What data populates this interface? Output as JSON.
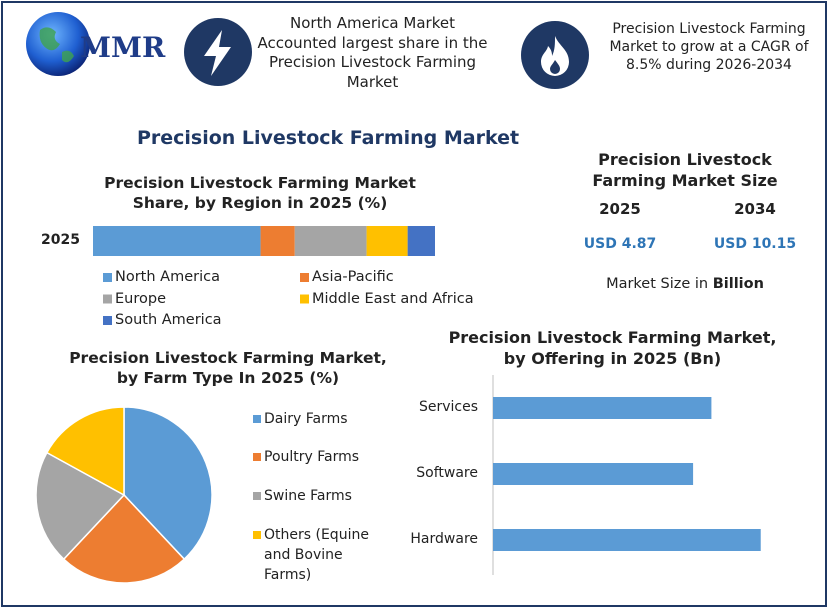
{
  "header": {
    "logo": "MMR",
    "facts": [
      "North America Market Accounted largest share in the Precision Livestock Farming Market",
      "Precision Livestock Farming Market to grow at a CAGR of 8.5% during 2026-2034"
    ]
  },
  "main_title": "Precision Livestock Farming Market",
  "market_size": {
    "title": "Precision Livestock Farming Market Size",
    "years": [
      "2025",
      "2034"
    ],
    "values": [
      "USD 4.87",
      "USD 10.15"
    ],
    "note": "Market Size in",
    "note_bold": "Billion"
  },
  "chart_data": [
    {
      "type": "stacked_bar",
      "title": "Precision Livestock Farming Market Share, by Region in 2025 (%)",
      "categories": [
        "2025"
      ],
      "xlim": [
        0,
        100
      ],
      "series": [
        {
          "name": "North America",
          "color": "#5b9bd5",
          "values": [
            49
          ]
        },
        {
          "name": "Asia-Pacific",
          "color": "#ed7d31",
          "values": [
            10
          ]
        },
        {
          "name": "Europe",
          "color": "#a5a5a5",
          "values": [
            21
          ]
        },
        {
          "name": "Middle East and Africa",
          "color": "#ffc000",
          "values": [
            12
          ]
        },
        {
          "name": "South America",
          "color": "#4472c4",
          "values": [
            8
          ]
        }
      ]
    },
    {
      "type": "pie",
      "title": "Precision Livestock Farming Market, by Farm Type In 2025 (%)",
      "labels": [
        "Dairy Farms",
        "Poultry Farms",
        "Swine Farms",
        "Others (Equine and Bovine Farms)"
      ],
      "values": [
        38,
        24,
        21,
        17
      ],
      "colors": [
        "#5b9bd5",
        "#ed7d31",
        "#a5a5a5",
        "#ffc000"
      ]
    },
    {
      "type": "bar",
      "title": "Precision Livestock Farming Market, by Offering in 2025 (Bn)",
      "categories": [
        "Services",
        "Software",
        "Hardware"
      ],
      "values": [
        1.55,
        1.42,
        1.9
      ],
      "color": "#5b9bd5",
      "xlim": [
        0,
        2.2
      ]
    }
  ]
}
